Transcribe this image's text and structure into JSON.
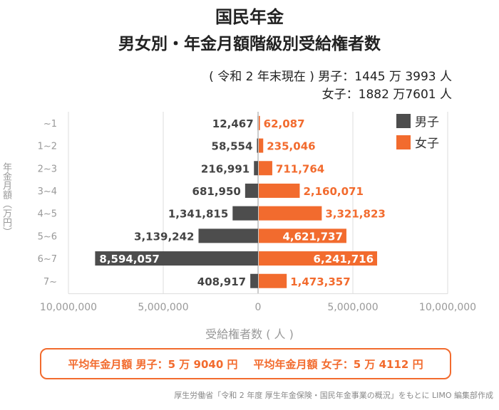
{
  "header": {
    "title": "国民年金",
    "subtitle": "男女別・年金月額階級別受給権者数",
    "note_line1": "( 令和 2 年末現在 ) 男子：1445 万 3993 人",
    "note_line2": "女子：1882 万7601 人"
  },
  "summary": {
    "male_avg": "平均年金月額 男子：5 万 9040 円",
    "female_avg": "平均年金月額 女子：5 万 4112 円"
  },
  "source": "厚生労働省「令和 2 年度 厚生年金保険・国民年金事業の概況」をもとに LIMO 編集部作成",
  "chart_data": {
    "type": "bar",
    "orientation": "horizontal-butterfly",
    "categories": [
      "~1",
      "1~2",
      "2~3",
      "3~4",
      "4~5",
      "5~6",
      "6~7",
      "7~"
    ],
    "series": [
      {
        "name": "男子",
        "color": "#4d4d4d",
        "side": "left",
        "values": [
          12467,
          58554,
          216991,
          681950,
          1341815,
          3139242,
          8594057,
          408917
        ]
      },
      {
        "name": "女子",
        "color": "#f26b2e",
        "side": "right",
        "values": [
          62087,
          235046,
          711764,
          2160071,
          3321823,
          4621737,
          6241716,
          1473357
        ]
      }
    ],
    "xlabel": "受給権者数 ( 人 )",
    "ylabel": "年金月額（万円）",
    "xticks": [
      "10,000,000",
      "5,000,000",
      "0",
      "5,000,000",
      "10,000,000"
    ],
    "xlim": [
      -10000000,
      10000000
    ],
    "grid": true,
    "legend": "top-right"
  }
}
